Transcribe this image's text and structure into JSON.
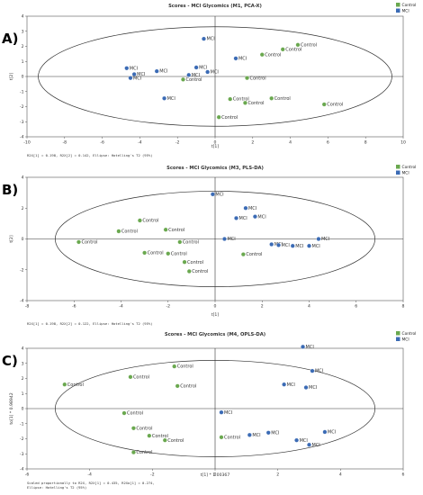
{
  "chart_data": [
    {
      "type": "scatter",
      "panel_letter": "A)",
      "title": "Scores - MCI Glycomics (M1, PCA-X)",
      "xlabel": "t[1]",
      "ylabel": "t[2]",
      "xlim": [
        -10,
        10
      ],
      "ylim": [
        -4,
        4
      ],
      "xticks": [
        -10,
        -8,
        -6,
        -4,
        -2,
        0,
        2,
        4,
        6,
        8,
        10
      ],
      "yticks": [
        -4,
        -3,
        -2,
        -1,
        0,
        1,
        2,
        3,
        4
      ],
      "footer": [
        "R2X[1] = 0.198, R2X[2] = 0.142, Ellipse: Hotelling's T2 (95%)"
      ],
      "legend": {
        "position": "top-right",
        "entries": [
          {
            "name": "Control",
            "color": "#6aa84f"
          },
          {
            "name": "MCI",
            "color": "#3b6bb5"
          }
        ]
      },
      "ellipse": {
        "rx": 9.4,
        "ry": 3.3
      },
      "series": [
        {
          "name": "MCI",
          "color": "#3b6bb5",
          "points": [
            {
              "x": -0.6,
              "y": 2.5,
              "label": "MCI"
            },
            {
              "x": -4.7,
              "y": 0.55,
              "label": "MCI"
            },
            {
              "x": -4.3,
              "y": 0.15,
              "label": "MCI"
            },
            {
              "x": -4.5,
              "y": -0.1,
              "label": "MCI"
            },
            {
              "x": -3.1,
              "y": 0.35,
              "label": "MCI"
            },
            {
              "x": -1.0,
              "y": 0.6,
              "label": "MCI"
            },
            {
              "x": -0.4,
              "y": 0.3,
              "label": "MCI"
            },
            {
              "x": -1.4,
              "y": 0.1,
              "label": "MCI"
            },
            {
              "x": 1.1,
              "y": 1.2,
              "label": "MCI"
            },
            {
              "x": -2.7,
              "y": -1.45,
              "label": "MCI"
            }
          ]
        },
        {
          "name": "Control",
          "color": "#6aa84f",
          "points": [
            {
              "x": 4.4,
              "y": 2.1,
              "label": "Control"
            },
            {
              "x": 3.6,
              "y": 1.8,
              "label": "Control"
            },
            {
              "x": 2.5,
              "y": 1.45,
              "label": "Control"
            },
            {
              "x": 1.7,
              "y": -0.1,
              "label": "Control"
            },
            {
              "x": -1.7,
              "y": -0.2,
              "label": "Control"
            },
            {
              "x": 0.2,
              "y": -2.7,
              "label": "Control"
            },
            {
              "x": 0.8,
              "y": -1.5,
              "label": "Control"
            },
            {
              "x": 1.6,
              "y": -1.75,
              "label": "Control"
            },
            {
              "x": 3.0,
              "y": -1.45,
              "label": "Control"
            },
            {
              "x": 5.8,
              "y": -1.85,
              "label": "Control"
            }
          ]
        }
      ]
    },
    {
      "type": "scatter",
      "panel_letter": "B)",
      "title": "Scores - MCI Glycomics (M3, PLS-DA)",
      "xlabel": "t[1]",
      "ylabel": "t[2]",
      "xlim": [
        -8,
        8
      ],
      "ylim": [
        -4,
        4
      ],
      "xticks": [
        -8,
        -6,
        -4,
        -2,
        0,
        2,
        4,
        6,
        8
      ],
      "yticks": [
        -4,
        -2,
        0,
        2,
        4
      ],
      "footer": [
        "R2X[1] = 0.198, R2X[2] = 0.122, Ellipse: Hotelling's T2 (95%)"
      ],
      "legend": {
        "position": "top-right",
        "entries": [
          {
            "name": "Control",
            "color": "#6aa84f"
          },
          {
            "name": "MCI",
            "color": "#3b6bb5"
          }
        ]
      },
      "ellipse": {
        "rx": 6.8,
        "ry": 3.1
      },
      "series": [
        {
          "name": "MCI",
          "color": "#3b6bb5",
          "points": [
            {
              "x": -0.1,
              "y": 2.9,
              "label": "MCI"
            },
            {
              "x": 1.3,
              "y": 2.0,
              "label": "MCI"
            },
            {
              "x": 1.7,
              "y": 1.45,
              "label": "MCI"
            },
            {
              "x": 0.9,
              "y": 1.35,
              "label": "MCI"
            },
            {
              "x": 0.4,
              "y": 0.0,
              "label": "MCI"
            },
            {
              "x": 2.4,
              "y": -0.35,
              "label": "MCI"
            },
            {
              "x": 2.7,
              "y": -0.4,
              "label": "MCI"
            },
            {
              "x": 3.3,
              "y": -0.45,
              "label": "MCI"
            },
            {
              "x": 4.0,
              "y": -0.45,
              "label": "MCI"
            },
            {
              "x": 4.4,
              "y": 0.0,
              "label": "MCI"
            }
          ]
        },
        {
          "name": "Control",
          "color": "#6aa84f",
          "points": [
            {
              "x": -3.2,
              "y": 1.2,
              "label": "Control"
            },
            {
              "x": -2.1,
              "y": 0.6,
              "label": "Control"
            },
            {
              "x": -5.8,
              "y": -0.2,
              "label": "Control"
            },
            {
              "x": -4.1,
              "y": 0.5,
              "label": "Control"
            },
            {
              "x": -3.0,
              "y": -0.9,
              "label": "Control"
            },
            {
              "x": -2.0,
              "y": -0.95,
              "label": "Control"
            },
            {
              "x": -1.3,
              "y": -1.5,
              "label": "Control"
            },
            {
              "x": -1.1,
              "y": -2.1,
              "label": "Control"
            },
            {
              "x": -1.5,
              "y": -0.2,
              "label": "Control"
            },
            {
              "x": 1.2,
              "y": -1.0,
              "label": "Control"
            }
          ]
        }
      ]
    },
    {
      "type": "scatter",
      "panel_letter": "C)",
      "title": "Scores - MCI Glycomics (M4, OPLS-DA)",
      "xlabel": "t[1] * 1.00367",
      "ylabel": "to[1] * 0.98942",
      "xlim": [
        -6,
        6
      ],
      "ylim": [
        -4,
        4
      ],
      "xticks": [
        -6,
        -4,
        -2,
        0,
        2,
        4,
        6
      ],
      "yticks": [
        -4,
        -3,
        -2,
        -1,
        0,
        1,
        2,
        3,
        4
      ],
      "footer": [
        "Scaled proportionally to R2X, R2X[1] = 0.435, R2Xo[1] = 0.274,",
        "Ellipse: Hotelling's T2 (95%)"
      ],
      "legend": {
        "position": "top-right",
        "entries": [
          {
            "name": "Control",
            "color": "#6aa84f"
          },
          {
            "name": "MCI",
            "color": "#3b6bb5"
          }
        ]
      },
      "ellipse": {
        "rx": 5.1,
        "ry": 3.2
      },
      "series": [
        {
          "name": "MCI",
          "color": "#3b6bb5",
          "points": [
            {
              "x": 2.8,
              "y": 4.1,
              "label": "MCI"
            },
            {
              "x": 3.1,
              "y": 2.5,
              "label": "MCI"
            },
            {
              "x": 2.2,
              "y": 1.6,
              "label": "MCI"
            },
            {
              "x": 2.9,
              "y": 1.4,
              "label": "MCI"
            },
            {
              "x": 0.2,
              "y": -0.25,
              "label": "MCI"
            },
            {
              "x": 1.7,
              "y": -1.6,
              "label": "MCI"
            },
            {
              "x": 1.1,
              "y": -1.75,
              "label": "MCI"
            },
            {
              "x": 2.6,
              "y": -2.1,
              "label": "MCI"
            },
            {
              "x": 3.0,
              "y": -2.4,
              "label": "MCI"
            },
            {
              "x": 3.5,
              "y": -1.55,
              "label": "MCI"
            }
          ]
        },
        {
          "name": "Control",
          "color": "#6aa84f",
          "points": [
            {
              "x": -4.8,
              "y": 1.6,
              "label": "Control"
            },
            {
              "x": -2.7,
              "y": 2.1,
              "label": "Control"
            },
            {
              "x": -1.3,
              "y": 2.8,
              "label": "Control"
            },
            {
              "x": -1.2,
              "y": 1.5,
              "label": "Control"
            },
            {
              "x": -2.9,
              "y": -0.3,
              "label": "Control"
            },
            {
              "x": -2.6,
              "y": -1.3,
              "label": "Control"
            },
            {
              "x": -2.1,
              "y": -1.8,
              "label": "Control"
            },
            {
              "x": -1.6,
              "y": -2.1,
              "label": "Control"
            },
            {
              "x": -2.6,
              "y": -2.9,
              "label": "Control"
            },
            {
              "x": 0.2,
              "y": -1.9,
              "label": "Control"
            }
          ]
        }
      ]
    }
  ]
}
